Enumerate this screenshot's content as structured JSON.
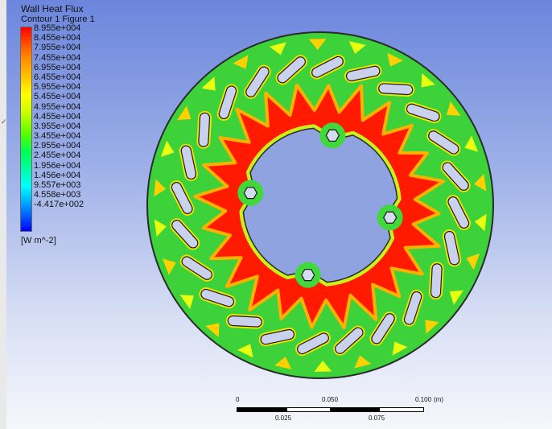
{
  "legend": {
    "title": "Wall Heat Flux",
    "subtitle": "Contour 1 Figure 1",
    "ticks": [
      "8.955e+004",
      "8.455e+004",
      "7.955e+004",
      "7.455e+004",
      "6.955e+004",
      "6.455e+004",
      "5.955e+004",
      "5.455e+004",
      "4.955e+004",
      "4.455e+004",
      "3.955e+004",
      "3.455e+004",
      "2.955e+004",
      "2.455e+004",
      "1.956e+004",
      "1.456e+004",
      "9.557e+003",
      "4.558e+003",
      "-4.417e+002"
    ],
    "unit": "[W m^-2]",
    "colors": {
      "max": "#ff0000",
      "mid": "#00ff52",
      "min": "#0000ff"
    }
  },
  "scale": {
    "top_labels": [
      "0",
      "0.050",
      "0.100",
      "(m)"
    ],
    "bottom_labels": [
      "0.025",
      "0.075"
    ]
  },
  "viewport": {
    "background_top": "#6b86dc",
    "background_bottom": "#f6f7fb",
    "edge_mark": "✓"
  }
}
